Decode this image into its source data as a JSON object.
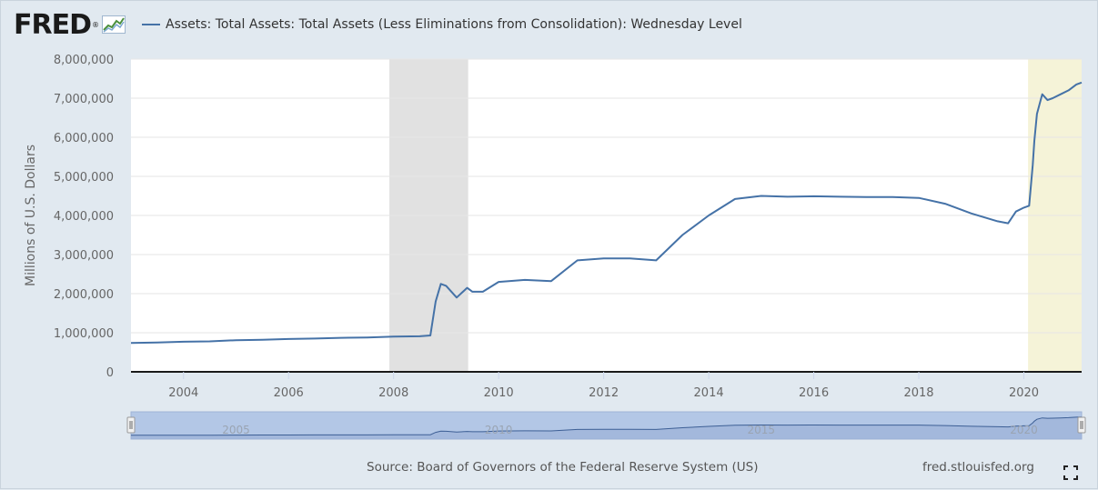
{
  "header": {
    "logo_text": "FRED",
    "logo_reg": "®",
    "series_label": "Assets: Total Assets: Total Assets (Less Eliminations from Consolidation): Wednesday Level"
  },
  "footer": {
    "source": "Source: Board of Governors of the Federal Reserve System (US)",
    "site": "fred.stlouisfed.org"
  },
  "colors": {
    "series": "#4572a7",
    "recession": "#e1e1e1",
    "highlight": "#f5f3d8",
    "background": "#e1e9f0",
    "navigator_mask": "#b3c7e6"
  },
  "icons": {
    "fullscreen": "fullscreen-icon",
    "logo": "fred-logo-chart-icon"
  },
  "chart_data": {
    "type": "line",
    "title": "",
    "xlabel": "",
    "ylabel": "Millions of U.S. Dollars",
    "xlim": [
      2003.0,
      2021.1
    ],
    "ylim": [
      0,
      8000000
    ],
    "grid": true,
    "legend_position": "top-left",
    "yticks": [
      "0",
      "1,000,000",
      "2,000,000",
      "3,000,000",
      "4,000,000",
      "5,000,000",
      "6,000,000",
      "7,000,000",
      "8,000,000"
    ],
    "ytick_values": [
      0,
      1000000,
      2000000,
      3000000,
      4000000,
      5000000,
      6000000,
      7000000,
      8000000
    ],
    "xticks": [
      "2004",
      "2006",
      "2008",
      "2010",
      "2012",
      "2014",
      "2016",
      "2018",
      "2020"
    ],
    "xtick_values": [
      2004,
      2006,
      2008,
      2010,
      2012,
      2014,
      2016,
      2018,
      2020
    ],
    "recessions": [
      [
        2007.92,
        2009.42
      ]
    ],
    "highlight": [
      [
        2020.08,
        2021.1
      ]
    ],
    "navigator_labels": [
      "2005",
      "2010",
      "2015",
      "2020"
    ],
    "navigator_label_values": [
      2005,
      2010,
      2015,
      2020
    ],
    "series": [
      {
        "name": "Assets: Total Assets: Total Assets (Less Eliminations from Consolidation): Wednesday Level",
        "x": [
          2003.0,
          2003.5,
          2004.0,
          2004.5,
          2005.0,
          2005.5,
          2006.0,
          2006.5,
          2007.0,
          2007.5,
          2008.0,
          2008.5,
          2008.7,
          2008.8,
          2008.9,
          2009.0,
          2009.2,
          2009.4,
          2009.5,
          2009.7,
          2010.0,
          2010.5,
          2011.0,
          2011.5,
          2012.0,
          2012.5,
          2013.0,
          2013.5,
          2014.0,
          2014.5,
          2015.0,
          2015.5,
          2016.0,
          2016.5,
          2017.0,
          2017.5,
          2018.0,
          2018.5,
          2019.0,
          2019.5,
          2019.7,
          2019.85,
          2020.0,
          2020.1,
          2020.17,
          2020.2,
          2020.25,
          2020.35,
          2020.45,
          2020.55,
          2020.7,
          2020.85,
          2021.0,
          2021.1
        ],
        "y": [
          740000,
          750000,
          770000,
          780000,
          810000,
          820000,
          840000,
          850000,
          870000,
          880000,
          900000,
          910000,
          930000,
          1800000,
          2250000,
          2200000,
          1900000,
          2150000,
          2050000,
          2050000,
          2300000,
          2350000,
          2320000,
          2850000,
          2900000,
          2900000,
          2850000,
          3500000,
          4000000,
          4420000,
          4500000,
          4480000,
          4490000,
          4480000,
          4470000,
          4470000,
          4450000,
          4300000,
          4050000,
          3850000,
          3800000,
          4100000,
          4200000,
          4250000,
          5300000,
          5900000,
          6600000,
          7100000,
          6950000,
          7000000,
          7100000,
          7200000,
          7350000,
          7400000
        ]
      }
    ]
  }
}
